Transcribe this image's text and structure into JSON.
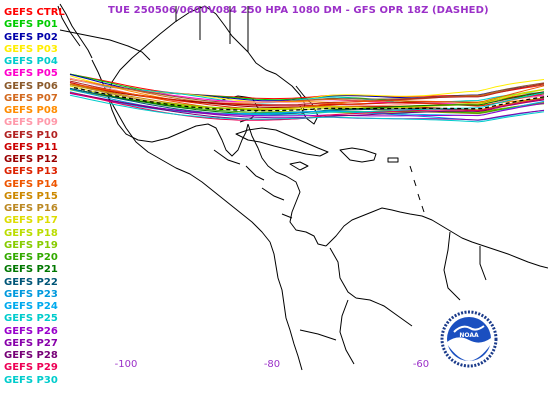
{
  "title": "TUE 250506/0600V084  250 HPA 1080 DM - GFS OPR 18Z (DASHED)",
  "legend": [
    {
      "label": "GEFS CTRL",
      "color": "#ff0000"
    },
    {
      "label": "GEFS P01",
      "color": "#00cc00"
    },
    {
      "label": "GEFS P02",
      "color": "#0000aa"
    },
    {
      "label": "GEFS P03",
      "color": "#ffee00"
    },
    {
      "label": "GEFS P04",
      "color": "#00cccc"
    },
    {
      "label": "GEFS P05",
      "color": "#ff00cc"
    },
    {
      "label": "GEFS P06",
      "color": "#8b5a2b"
    },
    {
      "label": "GEFS P07",
      "color": "#d2691e"
    },
    {
      "label": "GEFS P08",
      "color": "#ff8c00"
    },
    {
      "label": "GEFS P09",
      "color": "#ff99aa"
    },
    {
      "label": "GEFS P10",
      "color": "#b22222"
    },
    {
      "label": "GEFS P11",
      "color": "#cc0000"
    },
    {
      "label": "GEFS P12",
      "color": "#990000"
    },
    {
      "label": "GEFS P13",
      "color": "#dd2200"
    },
    {
      "label": "GEFS P14",
      "color": "#ee5500"
    },
    {
      "label": "GEFS P15",
      "color": "#cc8800"
    },
    {
      "label": "GEFS P16",
      "color": "#bb8822"
    },
    {
      "label": "GEFS P17",
      "color": "#dddd00"
    },
    {
      "label": "GEFS P18",
      "color": "#bbdd00"
    },
    {
      "label": "GEFS P19",
      "color": "#88cc00"
    },
    {
      "label": "GEFS P20",
      "color": "#33aa00"
    },
    {
      "label": "GEFS P21",
      "color": "#007700"
    },
    {
      "label": "GEFS P22",
      "color": "#005577"
    },
    {
      "label": "GEFS P23",
      "color": "#0099dd"
    },
    {
      "label": "GEFS P24",
      "color": "#00aaee"
    },
    {
      "label": "GEFS P25",
      "color": "#00cccc"
    },
    {
      "label": "GEFS P26",
      "color": "#9900cc"
    },
    {
      "label": "GEFS P27",
      "color": "#8800aa"
    },
    {
      "label": "GEFS P28",
      "color": "#770077"
    },
    {
      "label": "GEFS P29",
      "color": "#ee0055"
    },
    {
      "label": "GEFS P30",
      "color": "#00cccc"
    }
  ],
  "longitude_labels": [
    "-100",
    "-80",
    "-60"
  ],
  "opr_dashed_color": "#000000",
  "map_line_color": "#000000",
  "logo_text": "NOAA"
}
